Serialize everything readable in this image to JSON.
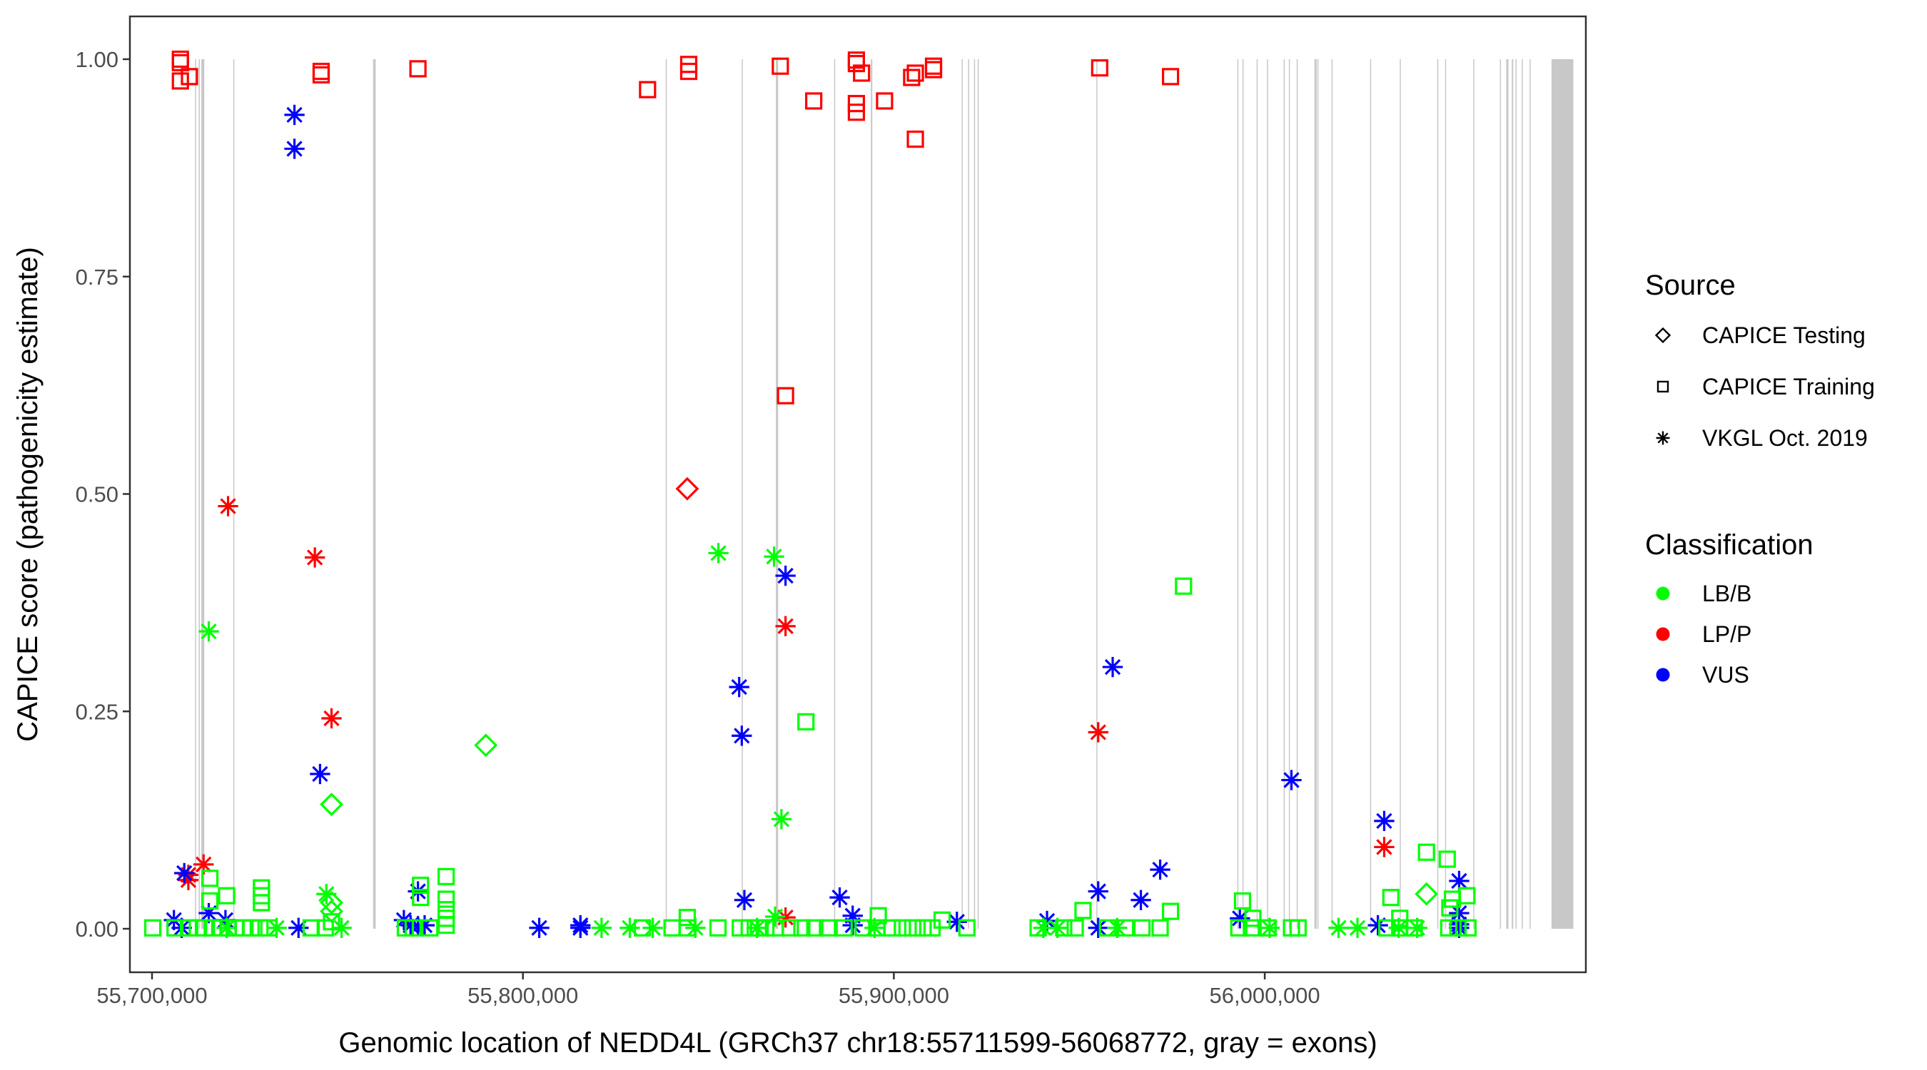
{
  "chart_data": {
    "type": "scatter",
    "title": "",
    "xlabel": "Genomic location of NEDD4L (GRCh37 chr18:55711599-56068772, gray = exons)",
    "ylabel": "CAPICE score (pathogenicity estimate)",
    "xlim": [
      55688000,
      56091000
    ],
    "ylim": [
      -0.05,
      1.05
    ],
    "x_ticks": [
      55700000,
      55800000,
      55900000,
      56000000
    ],
    "x_tick_labels": [
      "55,700,000",
      "55,800,000",
      "55,900,000",
      "56,000,000"
    ],
    "y_ticks": [
      0,
      0.25,
      0.5,
      0.75,
      1.0
    ],
    "y_tick_labels": [
      "0.00",
      "0.25",
      "0.50",
      "0.75",
      "1.00"
    ],
    "grid": false,
    "legend_position": "right",
    "exon_band_ymax": 1.0,
    "exons": [
      [
        55711600,
        55711800
      ],
      [
        55712600,
        55712800
      ],
      [
        55713300,
        55714100
      ],
      [
        55721900,
        55722100
      ],
      [
        55759600,
        55760300
      ],
      [
        55838500,
        55838700
      ],
      [
        55859000,
        55859200
      ],
      [
        55868200,
        55868800
      ],
      [
        55883900,
        55884100
      ],
      [
        55893800,
        55894200
      ],
      [
        55918300,
        55918500
      ],
      [
        55920000,
        55920300
      ],
      [
        55921600,
        55921800
      ],
      [
        55922600,
        55922800
      ],
      [
        55954600,
        55954800
      ],
      [
        55992600,
        55992800
      ],
      [
        55994000,
        55994200
      ],
      [
        55997800,
        55998000
      ],
      [
        56000600,
        56000800
      ],
      [
        56005100,
        56005300
      ],
      [
        56006500,
        56006700
      ],
      [
        56008600,
        56008800
      ],
      [
        56013400,
        56014000
      ],
      [
        56014200,
        56014400
      ],
      [
        56018000,
        56018200
      ],
      [
        56028400,
        56028600
      ],
      [
        56036400,
        56036600
      ],
      [
        56046500,
        56046700
      ],
      [
        56048600,
        56048800
      ],
      [
        56056200,
        56056400
      ],
      [
        56063400,
        56063600
      ],
      [
        56065100,
        56065700
      ],
      [
        56066600,
        56067000
      ],
      [
        56067600,
        56067800
      ],
      [
        56069300,
        56069500
      ],
      [
        56071400,
        56071600
      ],
      [
        56077300,
        56083200
      ]
    ],
    "legend": {
      "source_title": "Source",
      "sources": [
        {
          "key": "S",
          "label": "CAPICE Testing",
          "shape": "diamond"
        },
        {
          "key": "T",
          "label": "CAPICE Training",
          "shape": "square"
        },
        {
          "key": "V",
          "label": "VKGL Oct. 2019",
          "shape": "asterisk"
        }
      ],
      "class_title": "Classification",
      "classes": [
        {
          "key": "B",
          "label": "LB/B",
          "color": "#00FF00"
        },
        {
          "key": "P",
          "label": "LP/P",
          "color": "#FF0000"
        },
        {
          "key": "U",
          "label": "VUS",
          "color": "#0000FF"
        }
      ]
    },
    "points": [
      [
        55707650,
        1.0,
        "T",
        "P"
      ],
      [
        55707650,
        0.996,
        "T",
        "P"
      ],
      [
        55707650,
        0.975,
        "T",
        "P"
      ],
      [
        55710100,
        0.98,
        "T",
        "P"
      ],
      [
        55745600,
        0.986,
        "T",
        "P"
      ],
      [
        55745600,
        0.982,
        "T",
        "P"
      ],
      [
        55771700,
        0.989,
        "T",
        "P"
      ],
      [
        55833600,
        0.965,
        "T",
        "P"
      ],
      [
        55844700,
        0.994,
        "T",
        "P"
      ],
      [
        55844700,
        0.986,
        "T",
        "P"
      ],
      [
        55869400,
        0.992,
        "T",
        "P"
      ],
      [
        55878400,
        0.952,
        "T",
        "P"
      ],
      [
        55889900,
        0.999,
        "T",
        "P"
      ],
      [
        55889900,
        0.995,
        "T",
        "P"
      ],
      [
        55891300,
        0.984,
        "T",
        "P"
      ],
      [
        55889900,
        0.949,
        "T",
        "P"
      ],
      [
        55889900,
        0.939,
        "T",
        "P"
      ],
      [
        55897500,
        0.952,
        "T",
        "P"
      ],
      [
        55904800,
        0.979,
        "T",
        "P"
      ],
      [
        55905800,
        0.908,
        "T",
        "P"
      ],
      [
        55905800,
        0.984,
        "T",
        "P"
      ],
      [
        55910700,
        0.988,
        "T",
        "P"
      ],
      [
        55910700,
        0.992,
        "T",
        "P"
      ],
      [
        55955500,
        0.99,
        "T",
        "P"
      ],
      [
        55974600,
        0.98,
        "T",
        "P"
      ],
      [
        55870800,
        0.613,
        "T",
        "P"
      ],
      [
        55738400,
        0.936,
        "V",
        "U"
      ],
      [
        55738400,
        0.897,
        "V",
        "U"
      ],
      [
        55720500,
        0.486,
        "V",
        "P"
      ],
      [
        55743900,
        0.427,
        "V",
        "P"
      ],
      [
        55748400,
        0.242,
        "V",
        "P"
      ],
      [
        55713900,
        0.074,
        "V",
        "P"
      ],
      [
        55709800,
        0.062,
        "V",
        "P"
      ],
      [
        55709800,
        0.056,
        "V",
        "P"
      ],
      [
        55870800,
        0.348,
        "V",
        "P"
      ],
      [
        55870800,
        0.013,
        "V",
        "P"
      ],
      [
        55955100,
        0.226,
        "V",
        "P"
      ],
      [
        56032200,
        0.094,
        "V",
        "P"
      ],
      [
        55844300,
        0.506,
        "S",
        "P"
      ],
      [
        55852700,
        0.432,
        "V",
        "B"
      ],
      [
        55867700,
        0.428,
        "V",
        "B"
      ],
      [
        55715300,
        0.342,
        "V",
        "B"
      ],
      [
        55869700,
        0.126,
        "V",
        "B"
      ],
      [
        55747000,
        0.04,
        "V",
        "B"
      ],
      [
        55790000,
        0.211,
        "S",
        "B"
      ],
      [
        55748400,
        0.143,
        "S",
        "B"
      ],
      [
        55748400,
        0.03,
        "S",
        "B"
      ],
      [
        55748400,
        0.02,
        "S",
        "B"
      ],
      [
        56043600,
        0.04,
        "S",
        "B"
      ],
      [
        55870800,
        0.406,
        "V",
        "U"
      ],
      [
        55858300,
        0.278,
        "V",
        "U"
      ],
      [
        55859000,
        0.222,
        "V",
        "U"
      ],
      [
        55745300,
        0.178,
        "V",
        "U"
      ],
      [
        55959000,
        0.301,
        "V",
        "U"
      ],
      [
        56007200,
        0.171,
        "V",
        "U"
      ],
      [
        56032200,
        0.124,
        "V",
        "U"
      ],
      [
        55971800,
        0.068,
        "V",
        "U"
      ],
      [
        55859700,
        0.033,
        "V",
        "U"
      ],
      [
        55885400,
        0.036,
        "V",
        "U"
      ],
      [
        55955100,
        0.043,
        "V",
        "U"
      ],
      [
        55966600,
        0.033,
        "V",
        "U"
      ],
      [
        55708700,
        0.064,
        "V",
        "U"
      ],
      [
        55705900,
        0.01,
        "V",
        "U"
      ],
      [
        55708000,
        0.001,
        "V",
        "U"
      ],
      [
        55715300,
        0.018,
        "V",
        "U"
      ],
      [
        55719800,
        0.01,
        "V",
        "U"
      ],
      [
        55739500,
        0.001,
        "V",
        "U"
      ],
      [
        55767900,
        0.01,
        "V",
        "U"
      ],
      [
        55769700,
        0.004,
        "V",
        "U"
      ],
      [
        55771700,
        0.043,
        "V",
        "U"
      ],
      [
        55771700,
        0.003,
        "V",
        "U"
      ],
      [
        55773500,
        0.004,
        "V",
        "U"
      ],
      [
        55804400,
        0.001,
        "V",
        "U"
      ],
      [
        55815500,
        0.004,
        "V",
        "U"
      ],
      [
        55815500,
        0.001,
        "V",
        "U"
      ],
      [
        55888900,
        0.015,
        "V",
        "U"
      ],
      [
        55888900,
        0.004,
        "V",
        "U"
      ],
      [
        55917000,
        0.008,
        "V",
        "U"
      ],
      [
        55941300,
        0.009,
        "V",
        "U"
      ],
      [
        55955100,
        0.001,
        "V",
        "U"
      ],
      [
        55993300,
        0.012,
        "V",
        "U"
      ],
      [
        56030500,
        0.004,
        "V",
        "U"
      ],
      [
        56052400,
        0.055,
        "V",
        "U"
      ],
      [
        56052400,
        0.018,
        "V",
        "U"
      ],
      [
        56052400,
        0.005,
        "V",
        "U"
      ],
      [
        56052400,
        0.001,
        "V",
        "U"
      ],
      [
        55978100,
        0.394,
        "T",
        "B"
      ],
      [
        55876300,
        0.238,
        "T",
        "B"
      ],
      [
        56043600,
        0.088,
        "T",
        "B"
      ],
      [
        56049200,
        0.08,
        "T",
        "B"
      ],
      [
        55715600,
        0.058,
        "T",
        "B"
      ],
      [
        55729500,
        0.047,
        "T",
        "B"
      ],
      [
        55729500,
        0.038,
        "T",
        "B"
      ],
      [
        55729500,
        0.03,
        "T",
        "B"
      ],
      [
        55720100,
        0.038,
        "T",
        "B"
      ],
      [
        55715600,
        0.032,
        "T",
        "B"
      ],
      [
        55772400,
        0.05,
        "T",
        "B"
      ],
      [
        55772400,
        0.036,
        "T",
        "B"
      ],
      [
        55779300,
        0.06,
        "T",
        "B"
      ],
      [
        55779300,
        0.034,
        "T",
        "B"
      ],
      [
        55779300,
        0.022,
        "T",
        "B"
      ],
      [
        55779300,
        0.012,
        "T",
        "B"
      ],
      [
        55779300,
        0.004,
        "T",
        "B"
      ],
      [
        55748400,
        0.008,
        "T",
        "B"
      ],
      [
        55994000,
        0.032,
        "T",
        "B"
      ],
      [
        55996800,
        0.012,
        "T",
        "B"
      ],
      [
        56034000,
        0.036,
        "T",
        "B"
      ],
      [
        56036400,
        0.012,
        "T",
        "B"
      ],
      [
        56050600,
        0.034,
        "T",
        "B"
      ],
      [
        56054500,
        0.038,
        "T",
        "B"
      ],
      [
        56049900,
        0.024,
        "T",
        "B"
      ],
      [
        55951000,
        0.021,
        "T",
        "B"
      ],
      [
        55974600,
        0.02,
        "T",
        "B"
      ],
      [
        55844300,
        0.013,
        "T",
        "B"
      ],
      [
        55895800,
        0.015,
        "T",
        "B"
      ],
      [
        55913000,
        0.01,
        "T",
        "B"
      ],
      [
        55700200,
        0.001,
        "T",
        "B"
      ],
      [
        55706200,
        0.001,
        "T",
        "B"
      ],
      [
        55709800,
        0.001,
        "T",
        "B"
      ],
      [
        55712200,
        0.001,
        "T",
        "B"
      ],
      [
        55714200,
        0.001,
        "T",
        "B"
      ],
      [
        55716600,
        0.001,
        "T",
        "B"
      ],
      [
        55718700,
        0.001,
        "T",
        "B"
      ],
      [
        55720500,
        0.001,
        "T",
        "B"
      ],
      [
        55722500,
        0.001,
        "T",
        "B"
      ],
      [
        55724600,
        0.001,
        "T",
        "B"
      ],
      [
        55726700,
        0.001,
        "T",
        "B"
      ],
      [
        55729100,
        0.001,
        "T",
        "B"
      ],
      [
        55731500,
        0.001,
        "T",
        "B"
      ],
      [
        55742900,
        0.001,
        "T",
        "B"
      ],
      [
        55746700,
        0.001,
        "T",
        "B"
      ],
      [
        55768300,
        0.001,
        "T",
        "B"
      ],
      [
        55770400,
        0.001,
        "T",
        "B"
      ],
      [
        55774900,
        0.001,
        "T",
        "B"
      ],
      [
        55832200,
        0.001,
        "T",
        "B"
      ],
      [
        55840200,
        0.001,
        "T",
        "B"
      ],
      [
        55844300,
        0.001,
        "T",
        "B"
      ],
      [
        55852600,
        0.001,
        "T",
        "B"
      ],
      [
        55858600,
        0.001,
        "T",
        "B"
      ],
      [
        55861000,
        0.001,
        "T",
        "B"
      ],
      [
        55863500,
        0.001,
        "T",
        "B"
      ],
      [
        55865500,
        0.001,
        "T",
        "B"
      ],
      [
        55868000,
        0.001,
        "T",
        "B"
      ],
      [
        55872100,
        0.001,
        "T",
        "B"
      ],
      [
        55875200,
        0.001,
        "T",
        "B"
      ],
      [
        55878700,
        0.001,
        "T",
        "B"
      ],
      [
        55882100,
        0.001,
        "T",
        "B"
      ],
      [
        55886600,
        0.001,
        "T",
        "B"
      ],
      [
        55891700,
        0.001,
        "T",
        "B"
      ],
      [
        55895400,
        0.001,
        "T",
        "B"
      ],
      [
        55899500,
        0.001,
        "T",
        "B"
      ],
      [
        55902300,
        0.001,
        "T",
        "B"
      ],
      [
        55905100,
        0.001,
        "T",
        "B"
      ],
      [
        55907900,
        0.001,
        "T",
        "B"
      ],
      [
        55910300,
        0.001,
        "T",
        "B"
      ],
      [
        55919700,
        0.001,
        "T",
        "B"
      ],
      [
        55938900,
        0.001,
        "T",
        "B"
      ],
      [
        55945800,
        0.001,
        "T",
        "B"
      ],
      [
        55948900,
        0.001,
        "T",
        "B"
      ],
      [
        55957600,
        0.001,
        "T",
        "B"
      ],
      [
        55962500,
        0.001,
        "T",
        "B"
      ],
      [
        55966900,
        0.001,
        "T",
        "B"
      ],
      [
        55971800,
        0.001,
        "T",
        "B"
      ],
      [
        55993000,
        0.001,
        "T",
        "B"
      ],
      [
        55996400,
        0.001,
        "T",
        "B"
      ],
      [
        56000900,
        0.001,
        "T",
        "B"
      ],
      [
        56007200,
        0.001,
        "T",
        "B"
      ],
      [
        56009000,
        0.001,
        "T",
        "B"
      ],
      [
        56032900,
        0.001,
        "T",
        "B"
      ],
      [
        56036400,
        0.001,
        "T",
        "B"
      ],
      [
        56040300,
        0.001,
        "T",
        "B"
      ],
      [
        56049600,
        0.001,
        "T",
        "B"
      ],
      [
        56052100,
        0.001,
        "T",
        "B"
      ],
      [
        56054800,
        0.001,
        "T",
        "B"
      ],
      [
        55720100,
        0.001,
        "V",
        "B"
      ],
      [
        55733600,
        0.001,
        "V",
        "B"
      ],
      [
        55751100,
        0.001,
        "V",
        "B"
      ],
      [
        55821200,
        0.001,
        "V",
        "B"
      ],
      [
        55828800,
        0.001,
        "V",
        "B"
      ],
      [
        55835000,
        0.001,
        "V",
        "B"
      ],
      [
        55863100,
        0.001,
        "V",
        "B"
      ],
      [
        55894800,
        0.001,
        "V",
        "B"
      ],
      [
        55940300,
        0.001,
        "V",
        "B"
      ],
      [
        55944100,
        0.001,
        "V",
        "B"
      ],
      [
        55960200,
        0.001,
        "V",
        "B"
      ],
      [
        56001300,
        0.001,
        "V",
        "B"
      ],
      [
        56019900,
        0.001,
        "V",
        "B"
      ],
      [
        56025000,
        0.001,
        "V",
        "B"
      ],
      [
        56036100,
        0.001,
        "V",
        "B"
      ],
      [
        56041100,
        0.001,
        "V",
        "B"
      ],
      [
        55868000,
        0.014,
        "V",
        "B"
      ],
      [
        55846500,
        0.001,
        "V",
        "B"
      ]
    ]
  }
}
